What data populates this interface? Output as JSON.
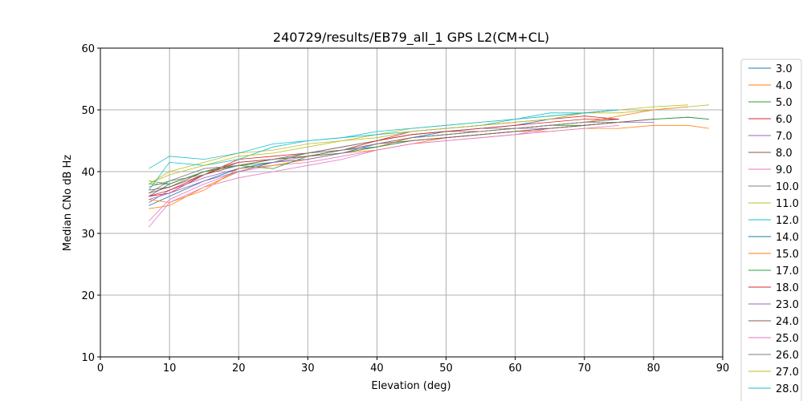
{
  "chart_data": {
    "type": "line",
    "title": "240729/results/EB79_all_1 GPS L2(CM+CL)",
    "xlabel": "Elevation (deg)",
    "ylabel": "Median CNo dB Hz",
    "xlim": [
      0,
      90
    ],
    "ylim": [
      10,
      60
    ],
    "xticks": [
      "0",
      "10",
      "20",
      "30",
      "40",
      "50",
      "60",
      "70",
      "80",
      "90"
    ],
    "yticks": [
      "10",
      "20",
      "30",
      "40",
      "50",
      "60"
    ],
    "grid": true,
    "legend_position": "right (outside plot)",
    "x": [
      7,
      10,
      15,
      20,
      25,
      30,
      35,
      40,
      45,
      50,
      55,
      60,
      65,
      70,
      75,
      80,
      85,
      88
    ],
    "series": [
      {
        "name": "3.0",
        "color": "#1f77b4",
        "values": [
          36.0,
          38.0,
          40.0,
          41.0,
          42.0,
          43.0,
          43.5,
          44.0,
          45.0,
          45.5,
          46.0,
          46.5,
          47.0,
          47.5,
          48.0,
          48.5,
          48.8,
          48.5
        ]
      },
      {
        "name": "4.0",
        "color": "#ff7f0e",
        "values": [
          34.0,
          34.5,
          37.5,
          40.0,
          41.5,
          42.0,
          43.0,
          43.5,
          44.5,
          45.5,
          46.0,
          46.5,
          46.5,
          47.0,
          47.0,
          47.5,
          47.5,
          47.0
        ]
      },
      {
        "name": "5.0",
        "color": "#2ca02c",
        "values": [
          38.5,
          38.0,
          40.0,
          41.0,
          41.5,
          43.0,
          43.5,
          44.5,
          45.5,
          46.0,
          46.5,
          47.0,
          47.5,
          47.5,
          48.0,
          48.5,
          48.8,
          48.5
        ]
      },
      {
        "name": "6.0",
        "color": "#d62728",
        "values": [
          36.0,
          36.5,
          39.5,
          42.0,
          42.5,
          43.0,
          44.0,
          45.0,
          46.5,
          47.0,
          47.5,
          48.0,
          48.5,
          49.0,
          48.5,
          null,
          null,
          null
        ]
      },
      {
        "name": "7.0",
        "color": "#9467bd",
        "values": [
          35.0,
          37.0,
          39.0,
          40.5,
          41.5,
          42.5,
          43.0,
          44.0,
          45.5,
          46.0,
          46.5,
          47.0,
          47.0,
          47.5,
          48.0,
          48.0,
          null,
          null
        ]
      },
      {
        "name": "8.0",
        "color": "#8c564b",
        "values": [
          37.0,
          37.5,
          40.0,
          41.5,
          42.0,
          43.0,
          44.0,
          45.0,
          46.0,
          46.5,
          46.5,
          47.0,
          47.5,
          48.0,
          48.5,
          null,
          null,
          null
        ]
      },
      {
        "name": "9.0",
        "color": "#e377c2",
        "values": [
          32.0,
          35.5,
          38.0,
          40.0,
          41.0,
          41.5,
          42.5,
          43.5,
          44.5,
          45.0,
          45.5,
          46.0,
          47.0,
          47.5,
          48.0,
          null,
          null,
          null
        ]
      },
      {
        "name": "10.0",
        "color": "#7f7f7f",
        "values": [
          36.5,
          38.5,
          40.5,
          41.0,
          42.0,
          43.0,
          44.0,
          45.0,
          46.0,
          46.5,
          47.0,
          47.0,
          47.5,
          48.0,
          48.5,
          null,
          null,
          null
        ]
      },
      {
        "name": "11.0",
        "color": "#bcbd22",
        "values": [
          38.0,
          40.0,
          41.5,
          43.0,
          43.5,
          44.5,
          45.0,
          46.0,
          47.0,
          47.5,
          48.0,
          48.5,
          49.0,
          49.5,
          49.5,
          50.0,
          50.5,
          50.8
        ]
      },
      {
        "name": "12.0",
        "color": "#17becf",
        "values": [
          37.0,
          41.5,
          41.0,
          42.0,
          44.0,
          45.0,
          45.5,
          46.0,
          46.5,
          47.0,
          47.5,
          48.5,
          49.0,
          49.5,
          50.0,
          null,
          null,
          null
        ]
      },
      {
        "name": "14.0",
        "color": "#1f77b4",
        "values": [
          34.5,
          36.0,
          38.5,
          40.5,
          41.5,
          42.0,
          43.0,
          44.5,
          45.5,
          46.5,
          47.0,
          47.5,
          48.5,
          49.5,
          50.0,
          null,
          null,
          null
        ]
      },
      {
        "name": "15.0",
        "color": "#ff7f0e",
        "values": [
          35.5,
          35.0,
          37.0,
          40.5,
          41.0,
          42.0,
          43.0,
          44.0,
          45.5,
          46.0,
          46.5,
          47.0,
          47.5,
          48.0,
          49.0,
          50.0,
          50.5,
          null
        ]
      },
      {
        "name": "17.0",
        "color": "#2ca02c",
        "values": [
          38.0,
          38.0,
          40.0,
          41.0,
          40.5,
          42.5,
          43.0,
          44.0,
          45.0,
          45.5,
          46.0,
          46.5,
          47.0,
          47.5,
          48.0,
          null,
          null,
          null
        ]
      },
      {
        "name": "18.0",
        "color": "#d62728",
        "values": [
          36.0,
          37.0,
          39.5,
          41.5,
          42.0,
          42.5,
          43.5,
          45.0,
          46.0,
          46.5,
          47.0,
          47.5,
          48.0,
          48.5,
          48.5,
          null,
          null,
          null
        ]
      },
      {
        "name": "23.0",
        "color": "#9467bd",
        "values": [
          35.5,
          36.5,
          38.5,
          40.0,
          41.5,
          42.0,
          43.0,
          44.5,
          45.5,
          46.0,
          46.5,
          47.0,
          47.5,
          48.0,
          null,
          null,
          null,
          null
        ]
      },
      {
        "name": "24.0",
        "color": "#8c564b",
        "values": [
          36.5,
          37.5,
          39.5,
          41.0,
          42.0,
          42.5,
          43.5,
          44.5,
          45.0,
          45.5,
          46.0,
          46.5,
          47.0,
          47.5,
          48.0,
          48.5,
          null,
          null
        ]
      },
      {
        "name": "25.0",
        "color": "#e377c2",
        "values": [
          31.0,
          35.0,
          37.5,
          39.0,
          40.0,
          41.0,
          42.0,
          43.5,
          44.5,
          45.0,
          45.5,
          46.0,
          46.5,
          47.0,
          47.5,
          null,
          null,
          null
        ]
      },
      {
        "name": "26.0",
        "color": "#7f7f7f",
        "values": [
          37.5,
          38.5,
          39.5,
          41.0,
          42.0,
          43.0,
          43.5,
          44.5,
          45.5,
          46.0,
          46.5,
          47.0,
          47.5,
          48.0,
          48.0,
          null,
          null,
          null
        ]
      },
      {
        "name": "27.0",
        "color": "#bcbd22",
        "values": [
          38.0,
          39.5,
          41.0,
          42.5,
          43.0,
          44.0,
          45.0,
          45.5,
          46.5,
          47.0,
          47.5,
          48.0,
          48.5,
          49.5,
          50.0,
          50.5,
          50.8,
          null
        ]
      },
      {
        "name": "28.0",
        "color": "#17becf",
        "values": [
          40.5,
          42.5,
          42.0,
          43.0,
          44.5,
          45.0,
          45.5,
          46.5,
          47.0,
          47.5,
          48.0,
          48.5,
          49.5,
          49.5,
          50.0,
          null,
          null,
          null
        ]
      }
    ]
  }
}
